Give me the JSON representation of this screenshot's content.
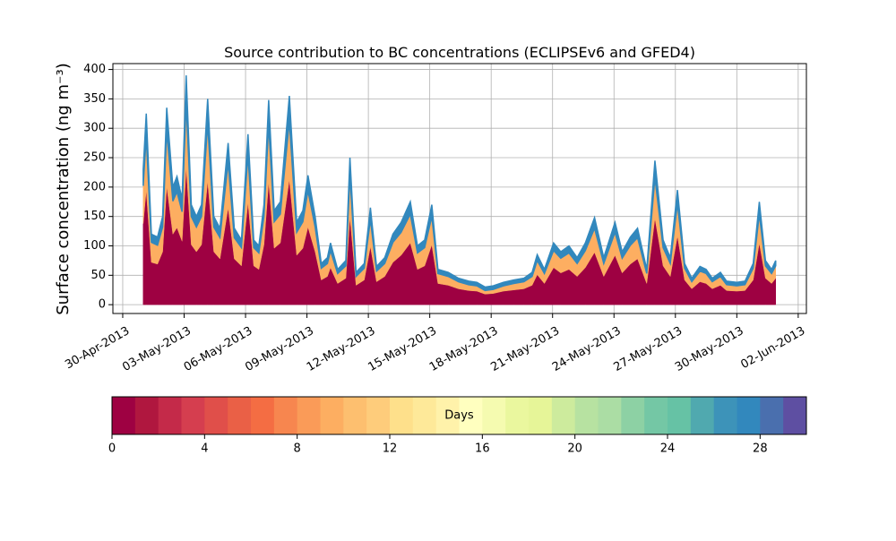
{
  "chart_data": {
    "type": "stacked_area",
    "title": "Source contribution to BC concentrations (ECLIPSEv6 and GFED4)",
    "y_label": "Surface concentration (ng m⁻³)",
    "grid": true,
    "xlim": [
      -0.48,
      33.4
    ],
    "ylim": [
      -15,
      410
    ],
    "xticks": [
      {
        "value": 0,
        "label": "30-Apr-2013"
      },
      {
        "value": 3,
        "label": "03-May-2013"
      },
      {
        "value": 6,
        "label": "06-May-2013"
      },
      {
        "value": 9,
        "label": "09-May-2013"
      },
      {
        "value": 12,
        "label": "12-May-2013"
      },
      {
        "value": 15,
        "label": "15-May-2013"
      },
      {
        "value": 18,
        "label": "18-May-2013"
      },
      {
        "value": 21,
        "label": "21-May-2013"
      },
      {
        "value": 24,
        "label": "24-May-2013"
      },
      {
        "value": 27,
        "label": "27-May-2013"
      },
      {
        "value": 30,
        "label": "30-May-2013"
      },
      {
        "value": 33,
        "label": "02-Jun-2013"
      }
    ],
    "yticks": [
      0,
      50,
      100,
      150,
      200,
      250,
      300,
      350,
      400
    ],
    "x": [
      1.0,
      1.15,
      1.4,
      1.7,
      1.95,
      2.15,
      2.45,
      2.65,
      2.9,
      3.1,
      3.35,
      3.6,
      3.85,
      4.15,
      4.45,
      4.75,
      5.15,
      5.45,
      5.8,
      6.12,
      6.4,
      6.65,
      6.9,
      7.13,
      7.4,
      7.7,
      8.14,
      8.5,
      8.8,
      9.05,
      9.4,
      9.7,
      10.0,
      10.15,
      10.5,
      10.9,
      11.1,
      11.4,
      11.8,
      12.1,
      12.4,
      12.8,
      13.2,
      13.6,
      14.05,
      14.4,
      14.75,
      15.1,
      15.4,
      15.9,
      16.4,
      16.9,
      17.3,
      17.7,
      18.1,
      18.6,
      19.1,
      19.6,
      20.0,
      20.25,
      20.6,
      21.05,
      21.4,
      21.8,
      22.2,
      22.6,
      23.05,
      23.5,
      24.05,
      24.4,
      24.8,
      25.15,
      25.6,
      26.0,
      26.4,
      26.75,
      27.1,
      27.45,
      27.8,
      28.2,
      28.5,
      28.8,
      29.2,
      29.5,
      30.0,
      30.4,
      30.8,
      31.1,
      31.4,
      31.7,
      31.9
    ],
    "series": [
      {
        "color": "#9e0142",
        "values": [
          138,
          195,
          72,
          69,
          90,
          201,
          120,
          131,
          108,
          234,
          102,
          90,
          102,
          210,
          90,
          78,
          165,
          78,
          66,
          174,
          66,
          60,
          102,
          209,
          96,
          105,
          213,
          84,
          96,
          132,
          90,
          42,
          48,
          63,
          36,
          45,
          150,
          33,
          42,
          99,
          39,
          48,
          72,
          84,
          105,
          60,
          66,
          102,
          36,
          33,
          27,
          24,
          23,
          18,
          19,
          23,
          25,
          27,
          33,
          51,
          36,
          63,
          54,
          60,
          48,
          63,
          89,
          48,
          84,
          54,
          69,
          78,
          36,
          147,
          66,
          48,
          117,
          42,
          27,
          39,
          36,
          27,
          33,
          24,
          23,
          24,
          42,
          105,
          45,
          36,
          45
        ]
      },
      {
        "color": "#fdae61",
        "values": [
          64,
          91,
          34,
          32,
          42,
          94,
          56,
          61,
          50,
          109,
          48,
          42,
          48,
          98,
          42,
          36,
          77,
          36,
          31,
          81,
          31,
          28,
          48,
          97,
          45,
          49,
          99,
          39,
          45,
          62,
          42,
          20,
          22,
          29,
          17,
          21,
          70,
          15,
          20,
          46,
          18,
          22,
          34,
          39,
          49,
          28,
          31,
          48,
          17,
          15,
          12,
          10,
          9,
          6,
          7,
          9,
          11,
          12,
          15,
          24,
          17,
          29,
          25,
          28,
          22,
          29,
          41,
          22,
          39,
          25,
          32,
          36,
          17,
          69,
          31,
          22,
          55,
          20,
          12,
          18,
          17,
          12,
          15,
          10,
          9,
          10,
          20,
          49,
          21,
          17,
          21
        ]
      },
      {
        "color": "#3288bd",
        "values": [
          28,
          39,
          14,
          14,
          18,
          40,
          24,
          26,
          22,
          47,
          20,
          18,
          20,
          42,
          18,
          16,
          33,
          16,
          13,
          35,
          13,
          12,
          20,
          42,
          19,
          21,
          43,
          17,
          19,
          26,
          18,
          8,
          10,
          13,
          7,
          9,
          30,
          7,
          8,
          20,
          8,
          10,
          14,
          17,
          21,
          12,
          13,
          20,
          7,
          7,
          6,
          6,
          6,
          6,
          6,
          6,
          6,
          6,
          7,
          10,
          7,
          13,
          11,
          12,
          10,
          13,
          18,
          10,
          17,
          11,
          14,
          16,
          7,
          29,
          13,
          10,
          23,
          8,
          6,
          8,
          7,
          6,
          7,
          6,
          6,
          6,
          8,
          21,
          9,
          7,
          9
        ]
      }
    ],
    "colorbar": {
      "label": "Days",
      "lim": [
        0,
        30
      ],
      "ticks": [
        0,
        4,
        8,
        12,
        16,
        20,
        24,
        28
      ],
      "colors": [
        "#9e0142",
        "#b0173f",
        "#c42a49",
        "#d53e4f",
        "#e04f4a",
        "#ea6046",
        "#f46d43",
        "#f7864f",
        "#fa9b58",
        "#fdae61",
        "#fdbf6f",
        "#fecc7b",
        "#fee08b",
        "#fee999",
        "#fff2aa",
        "#ffffbf",
        "#f5fbb0",
        "#eaf79e",
        "#e6f598",
        "#cdeb9d",
        "#b7e2a1",
        "#abdda4",
        "#8dd1a4",
        "#74c7a5",
        "#66c2a5",
        "#50a9af",
        "#3d93b9",
        "#3288bd",
        "#4a6fae",
        "#5e4fa2"
      ]
    }
  }
}
